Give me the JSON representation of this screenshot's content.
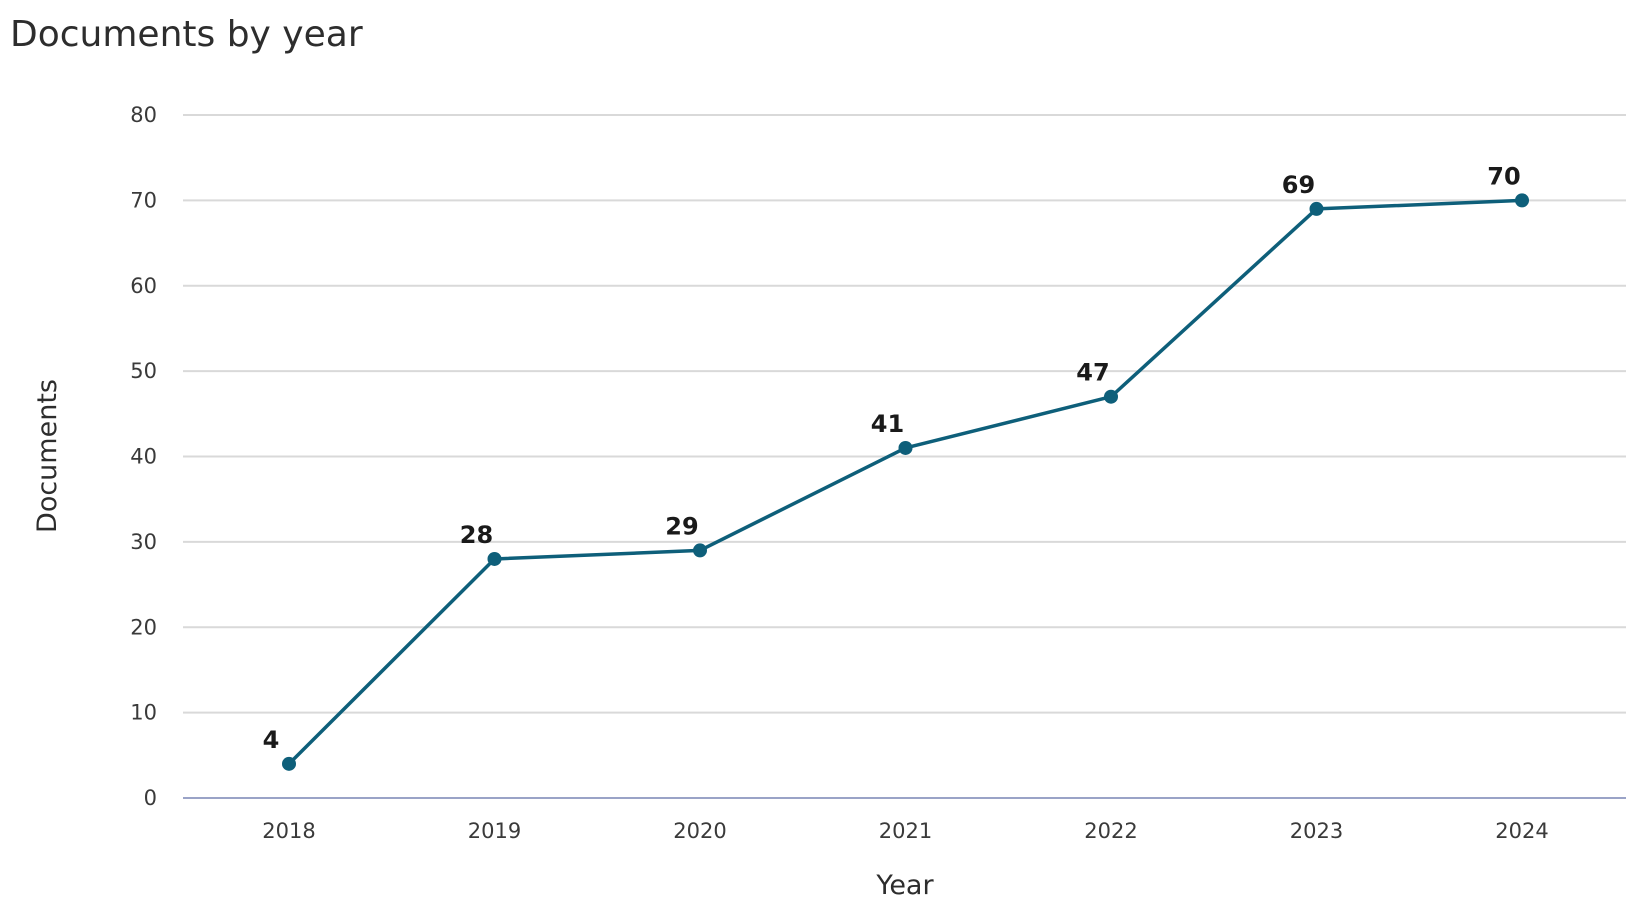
{
  "chart_data": {
    "type": "line",
    "title": "Documents by year",
    "xlabel": "Year",
    "ylabel": "Documents",
    "categories": [
      "2018",
      "2019",
      "2020",
      "2021",
      "2022",
      "2023",
      "2024"
    ],
    "series": [
      {
        "values": [
          4,
          28,
          29,
          41,
          47,
          69,
          70
        ],
        "color": "#0e5f7a"
      }
    ],
    "ylim": [
      0,
      80
    ],
    "yticks": [
      0,
      10,
      20,
      30,
      40,
      50,
      60,
      70,
      80
    ],
    "grid": true,
    "data_labels": true,
    "legend": "none"
  }
}
